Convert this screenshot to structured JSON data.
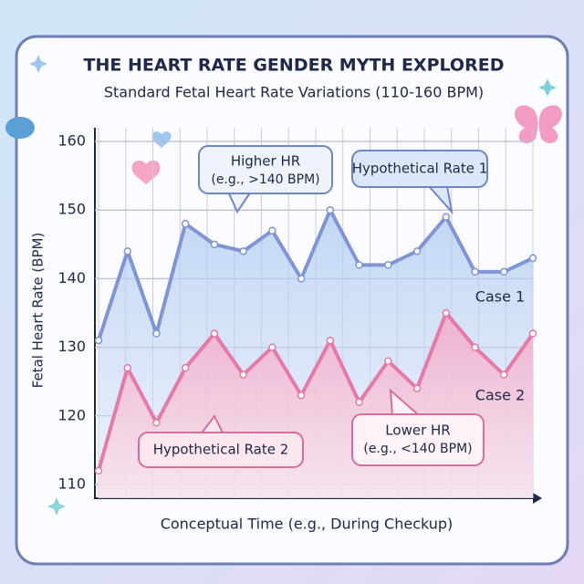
{
  "chart_data": {
    "type": "line",
    "title": "THE HEART RATE GENDER MYTH EXPLORED",
    "subtitle": "Standard Fetal Heart Rate Variations (110-160 BPM)",
    "y_label": "Fetal Heart Rate (BPM)",
    "x_label": "Conceptual Time (e.g., During Checkup)",
    "categories": [
      null,
      null,
      null,
      null,
      null,
      null,
      null,
      null,
      null,
      null,
      null,
      null,
      null,
      null,
      null,
      null
    ],
    "series": [
      {
        "name": "Case  1",
        "color": "#7f95d6",
        "values": [
          131,
          144,
          132,
          148,
          145,
          144,
          147,
          140,
          150,
          142,
          142,
          144,
          149,
          141,
          141,
          143
        ]
      },
      {
        "name": "Case 2",
        "color": "#e67aa6",
        "values": [
          112,
          127,
          119,
          127,
          132,
          126,
          130,
          123,
          131,
          122,
          128,
          124,
          135,
          130,
          126,
          132
        ]
      }
    ],
    "ylim": [
      108,
      162
    ],
    "yticks": [
      110,
      120,
      130,
      140,
      150,
      160
    ],
    "grid": true,
    "annotations": [
      "Higher HR",
      "(e.g., >140 BPM)",
      "Hypothetical Rate 1",
      "Hypothetical Rate 2",
      "Lower HR",
      "(e.g., <140 BPM)"
    ]
  }
}
